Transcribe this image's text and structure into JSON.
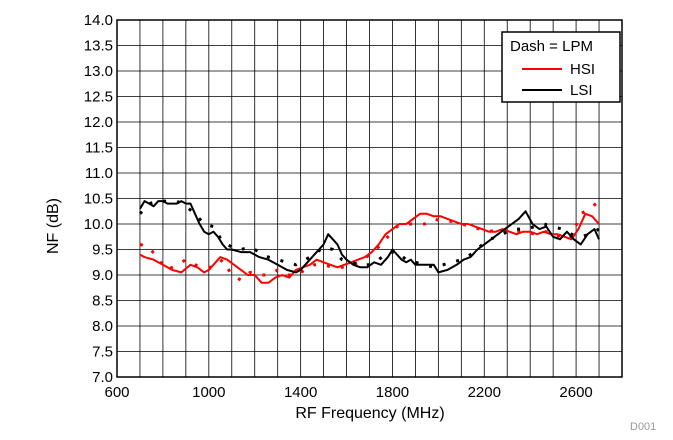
{
  "chart_data": {
    "type": "line",
    "title": "",
    "xlabel": "RF Frequency (MHz)",
    "ylabel": "NF (dB)",
    "xlim": [
      600,
      2800
    ],
    "ylim": [
      7.0,
      14.0
    ],
    "x_ticks": [
      600,
      1000,
      1400,
      1800,
      2200,
      2600
    ],
    "y_ticks": [
      7.0,
      7.5,
      8.0,
      8.5,
      9.0,
      9.5,
      10.0,
      10.5,
      11.0,
      11.5,
      12.0,
      12.5,
      13.0,
      13.5,
      14.0
    ],
    "x_grid_step": 100,
    "grid": true,
    "legend_placement": "top-right",
    "legend": {
      "title": "Dash = LPM",
      "entries": [
        "HSI",
        "LSI"
      ]
    },
    "figure_id": "D001",
    "series": [
      {
        "name": "HSI",
        "style": "solid",
        "color": "#ff0000",
        "x": [
          700,
          720,
          760,
          800,
          840,
          880,
          920,
          950,
          980,
          1000,
          1020,
          1050,
          1080,
          1110,
          1140,
          1170,
          1200,
          1230,
          1260,
          1290,
          1320,
          1350,
          1380,
          1410,
          1440,
          1470,
          1500,
          1530,
          1560,
          1590,
          1620,
          1650,
          1680,
          1710,
          1740,
          1770,
          1800,
          1830,
          1860,
          1890,
          1920,
          1950,
          1980,
          2010,
          2040,
          2070,
          2100,
          2130,
          2160,
          2190,
          2220,
          2250,
          2280,
          2310,
          2340,
          2370,
          2400,
          2430,
          2460,
          2490,
          2520,
          2550,
          2580,
          2610,
          2640,
          2670,
          2700
        ],
        "y": [
          9.4,
          9.35,
          9.3,
          9.2,
          9.1,
          9.05,
          9.2,
          9.15,
          9.05,
          9.1,
          9.2,
          9.35,
          9.3,
          9.2,
          9.1,
          9.0,
          9.0,
          8.85,
          8.85,
          8.95,
          9.0,
          8.95,
          9.1,
          9.15,
          9.2,
          9.3,
          9.25,
          9.2,
          9.15,
          9.2,
          9.25,
          9.3,
          9.35,
          9.45,
          9.6,
          9.8,
          9.9,
          10.0,
          10.0,
          10.1,
          10.2,
          10.2,
          10.15,
          10.15,
          10.1,
          10.05,
          10.0,
          10.0,
          9.95,
          9.9,
          9.85,
          9.85,
          9.9,
          9.85,
          9.8,
          9.85,
          9.85,
          9.8,
          9.85,
          9.8,
          9.8,
          9.75,
          9.7,
          9.9,
          10.2,
          10.15,
          10.0
        ]
      },
      {
        "name": "HSI LPM",
        "style": "dashed",
        "color": "#ff0000",
        "x": [
          700,
          740,
          780,
          820,
          860,
          900,
          940,
          980,
          1020,
          1060,
          1100,
          1140,
          1180,
          1220,
          1260,
          1300,
          1340,
          1380,
          1420,
          1460,
          1500,
          1540,
          1580,
          1620,
          1660,
          1700,
          1740,
          1780,
          1820,
          1860,
          1900,
          1940,
          1980,
          2020,
          2060,
          2100,
          2140,
          2180,
          2220,
          2260,
          2300,
          2340,
          2380,
          2420,
          2460,
          2500,
          2540,
          2580,
          2620,
          2660,
          2700
        ],
        "y": [
          9.6,
          9.55,
          9.3,
          9.1,
          9.2,
          9.3,
          9.2,
          9.15,
          9.15,
          9.3,
          9.0,
          8.9,
          9.05,
          9.0,
          9.0,
          9.1,
          9.0,
          9.0,
          9.1,
          9.2,
          9.2,
          9.15,
          9.15,
          9.2,
          9.25,
          9.4,
          9.55,
          9.75,
          9.95,
          10.0,
          10.0,
          10.0,
          10.1,
          10.05,
          10.05,
          10.0,
          9.95,
          9.9,
          9.85,
          9.9,
          9.85,
          9.85,
          9.85,
          9.8,
          9.85,
          9.85,
          9.7,
          9.75,
          10.2,
          10.3,
          10.45
        ]
      },
      {
        "name": "LSI",
        "style": "solid",
        "color": "#000000",
        "x": [
          700,
          720,
          740,
          760,
          780,
          800,
          820,
          840,
          860,
          880,
          900,
          920,
          940,
          960,
          980,
          1000,
          1020,
          1040,
          1060,
          1080,
          1100,
          1140,
          1180,
          1220,
          1260,
          1300,
          1340,
          1380,
          1400,
          1420,
          1440,
          1460,
          1480,
          1500,
          1520,
          1540,
          1560,
          1580,
          1600,
          1630,
          1660,
          1690,
          1720,
          1750,
          1780,
          1800,
          1820,
          1840,
          1860,
          1880,
          1900,
          1940,
          1980,
          2000,
          2040,
          2080,
          2110,
          2140,
          2170,
          2200,
          2230,
          2260,
          2290,
          2320,
          2350,
          2380,
          2410,
          2440,
          2470,
          2500,
          2530,
          2560,
          2590,
          2620,
          2650,
          2680,
          2700
        ],
        "y": [
          10.3,
          10.45,
          10.4,
          10.35,
          10.45,
          10.45,
          10.4,
          10.4,
          10.4,
          10.45,
          10.4,
          10.4,
          10.2,
          10.0,
          9.85,
          9.8,
          9.85,
          9.75,
          9.6,
          9.5,
          9.5,
          9.45,
          9.45,
          9.35,
          9.3,
          9.2,
          9.1,
          9.05,
          9.1,
          9.2,
          9.3,
          9.4,
          9.5,
          9.6,
          9.8,
          9.7,
          9.6,
          9.4,
          9.3,
          9.2,
          9.15,
          9.15,
          9.25,
          9.2,
          9.35,
          9.5,
          9.4,
          9.3,
          9.25,
          9.3,
          9.2,
          9.2,
          9.2,
          9.05,
          9.1,
          9.2,
          9.3,
          9.35,
          9.5,
          9.6,
          9.7,
          9.8,
          9.9,
          10.0,
          10.1,
          10.25,
          10.0,
          9.9,
          9.95,
          9.75,
          9.7,
          9.85,
          9.7,
          9.6,
          9.8,
          9.9,
          9.7
        ]
      },
      {
        "name": "LSI LPM",
        "style": "dashed",
        "color": "#000000",
        "x": [
          700,
          740,
          780,
          820,
          860,
          900,
          940,
          980,
          1020,
          1060,
          1100,
          1140,
          1180,
          1220,
          1260,
          1300,
          1340,
          1380,
          1420,
          1460,
          1500,
          1540,
          1580,
          1620,
          1660,
          1700,
          1740,
          1780,
          1820,
          1860,
          1900,
          1940,
          1980,
          2020,
          2060,
          2100,
          2140,
          2180,
          2220,
          2260,
          2300,
          2340,
          2380,
          2420,
          2460,
          2500,
          2540,
          2580,
          2620,
          2660,
          2700
        ],
        "y": [
          10.2,
          10.4,
          10.45,
          10.45,
          10.45,
          10.35,
          10.2,
          10.0,
          9.95,
          9.65,
          9.55,
          9.5,
          9.55,
          9.45,
          9.35,
          9.3,
          9.25,
          9.2,
          9.3,
          9.4,
          9.55,
          9.5,
          9.3,
          9.25,
          9.2,
          9.2,
          9.3,
          9.45,
          9.45,
          9.3,
          9.25,
          9.2,
          9.15,
          9.2,
          9.25,
          9.3,
          9.4,
          9.55,
          9.7,
          9.75,
          9.85,
          9.9,
          9.9,
          9.95,
          10.0,
          9.95,
          9.9,
          9.8,
          9.75,
          9.8,
          9.9
        ]
      }
    ]
  }
}
